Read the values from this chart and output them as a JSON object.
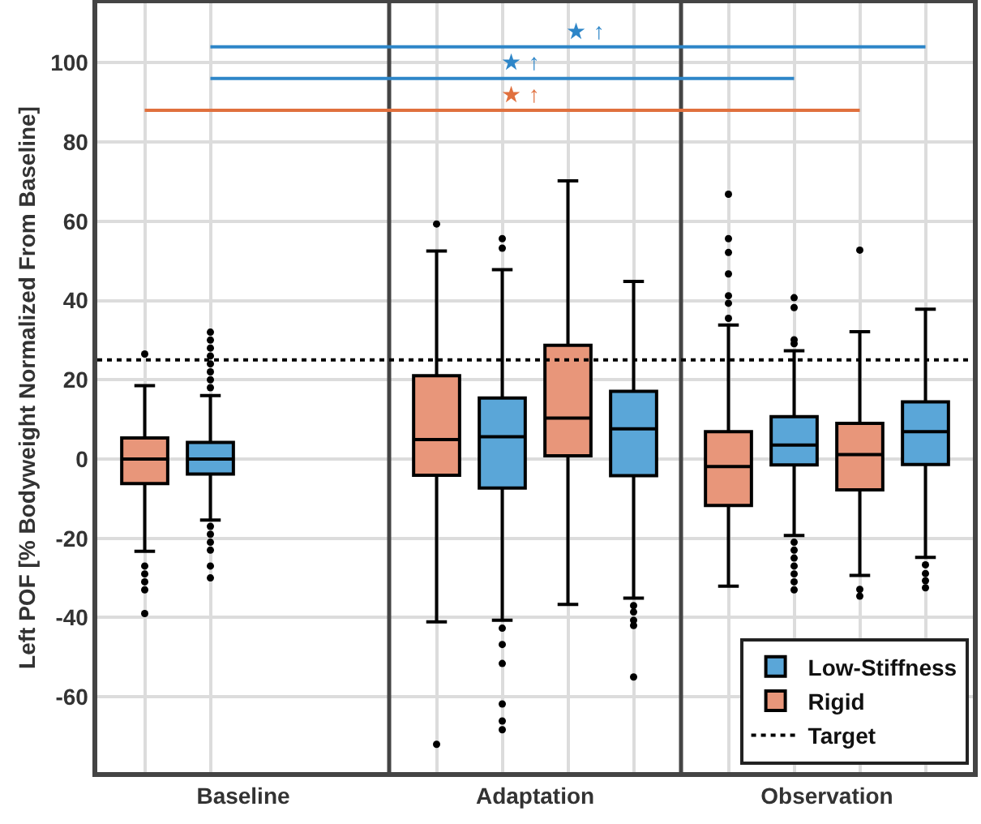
{
  "chart_data": {
    "type": "box",
    "ylabel": "Left POF [% Bodyweight Normalized From Baseline]",
    "categories": [
      "Baseline",
      "Adaptation",
      "Observation"
    ],
    "ylim": [
      -79,
      115
    ],
    "yticks": [
      -60,
      -40,
      -20,
      0,
      20,
      40,
      60,
      80,
      100
    ],
    "grid": true,
    "legend": "bottom right",
    "series": [
      {
        "name": "Rigid",
        "color": "#e8967a",
        "boxes": [
          {
            "low": -23.3,
            "q1": -6.2,
            "median": 0,
            "q3": 5.3,
            "high": 18.5,
            "outliers": [
              26.5,
              -27,
              -29,
              -31,
              -33,
              -39
            ]
          },
          {
            "low": -41.1,
            "q1": -4.1,
            "median": 4.9,
            "q3": 21,
            "high": 52.5,
            "outliers": [
              59.3,
              -72
            ]
          },
          {
            "low": -32.1,
            "q1": -11.7,
            "median": -1.9,
            "q3": 6.9,
            "high": 33.8,
            "outliers": [
              66.8,
              55.6,
              52.1,
              46.7,
              41.2,
              39.3,
              35.5
            ]
          }
        ]
      },
      {
        "name": "Low-Stiffness",
        "color": "#5aa6d8",
        "boxes": [
          {
            "low": -15.4,
            "q1": -3.8,
            "median": 0,
            "q3": 4.2,
            "high": 16,
            "outliers": [
              18,
              20,
              22,
              24,
              26,
              28,
              30,
              32,
              -17,
              -19,
              -21,
              -23,
              -27,
              -30
            ]
          },
          {
            "low": -40.7,
            "q1": -7.3,
            "median": 5.6,
            "q3": 15.4,
            "high": 47.8,
            "outliers": [
              55.6,
              53.2,
              -42.7,
              -46.8,
              -51.6,
              -61.8,
              -66.1,
              -68.3
            ]
          },
          {
            "low": -19.3,
            "q1": -1.5,
            "median": 3.5,
            "q3": 10.7,
            "high": 27.3,
            "outliers": [
              40.7,
              38.2,
              30.1,
              29.1,
              -21,
              -23,
              -25,
              -27,
              -29,
              -31,
              -33
            ]
          }
        ]
      },
      {
        "color": "#e8967a",
        "boxes": [
          null,
          {
            "low": -36.7,
            "q1": 0.8,
            "median": 10.3,
            "q3": 28.7,
            "high": 70.2
          },
          {
            "low": -29.4,
            "q1": -7.8,
            "median": 1.1,
            "q3": 9,
            "high": 32.1,
            "outliers": [
              52.7,
              -32.9,
              -34.6
            ]
          }
        ]
      },
      {
        "color": "#5aa6d8",
        "boxes": [
          null,
          {
            "low": -35.1,
            "q1": -4.2,
            "median": 7.6,
            "q3": 17.1,
            "high": 44.8,
            "outliers": [
              -37,
              -38.6,
              -40.7,
              -42,
              -55
            ]
          },
          {
            "low": -24.8,
            "q1": -1.4,
            "median": 6.9,
            "q3": 14.4,
            "high": 37.8,
            "outliers": [
              -26.7,
              -28.9,
              -30.7,
              -32.5
            ]
          }
        ]
      }
    ],
    "ref_lines": [
      {
        "axis": "y",
        "value": 25,
        "label": "Target",
        "line_style": "dotted"
      },
      {
        "axis": "y",
        "value": 104,
        "label": "★ ↑",
        "color": "#2e86c8"
      },
      {
        "axis": "y",
        "value": 96,
        "label": "★ ↑",
        "color": "#2e86c8"
      },
      {
        "axis": "y",
        "value": 88,
        "label": "★ ↑",
        "color": "#e0703e"
      }
    ]
  }
}
